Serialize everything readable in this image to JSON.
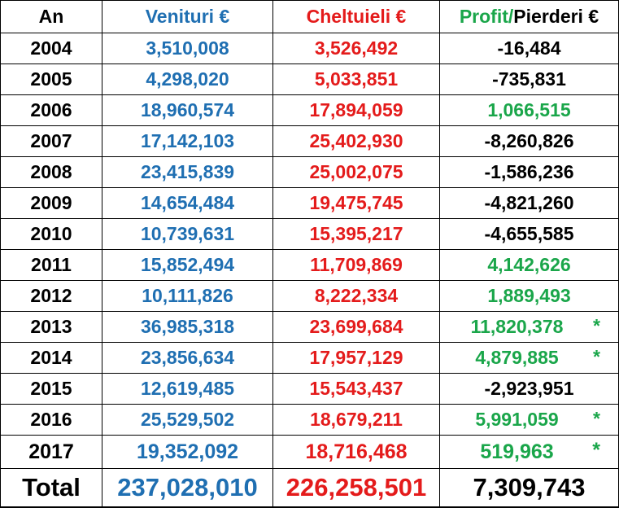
{
  "table": {
    "header": {
      "year": "An",
      "income": "Venituri €",
      "expenses": "Cheltuieli €",
      "profit": [
        "Profit/",
        "Pierderi €"
      ]
    },
    "rows": [
      [
        "2004",
        "3,510,008",
        "3,526,492",
        "-16,484",
        ""
      ],
      [
        "2005",
        "4,298,020",
        "5,033,851",
        "-735,831",
        ""
      ],
      [
        "2006",
        "18,960,574",
        "17,894,059",
        "1,066,515",
        ""
      ],
      [
        "2007",
        "17,142,103",
        "25,402,930",
        "-8,260,826",
        ""
      ],
      [
        "2008",
        "23,415,839",
        "25,002,075",
        "-1,586,236",
        ""
      ],
      [
        "2009",
        "14,654,484",
        "19,475,745",
        "-4,821,260",
        ""
      ],
      [
        "2010",
        "10,739,631",
        "15,395,217",
        "-4,655,585",
        ""
      ],
      [
        "2011",
        "15,852,494",
        "11,709,869",
        "4,142,626",
        ""
      ],
      [
        "2012",
        "10,111,826",
        "8,222,334",
        "1,889,493",
        ""
      ],
      [
        "2013",
        "36,985,318",
        "23,699,684",
        "11,820,378",
        "*"
      ],
      [
        "2014",
        "23,856,634",
        "17,957,129",
        "4,879,885",
        "*"
      ],
      [
        "2015",
        "12,619,485",
        "15,543,437",
        "-2,923,951",
        ""
      ],
      [
        "2016",
        "25,529,502",
        "18,679,211",
        "5,991,059",
        "*"
      ],
      [
        "2017",
        "19,352,092",
        "18,716,468",
        "519,963",
        "*"
      ]
    ],
    "total": [
      "Total",
      "237,028,010",
      "226,258,501",
      "7,309,743"
    ]
  }
}
